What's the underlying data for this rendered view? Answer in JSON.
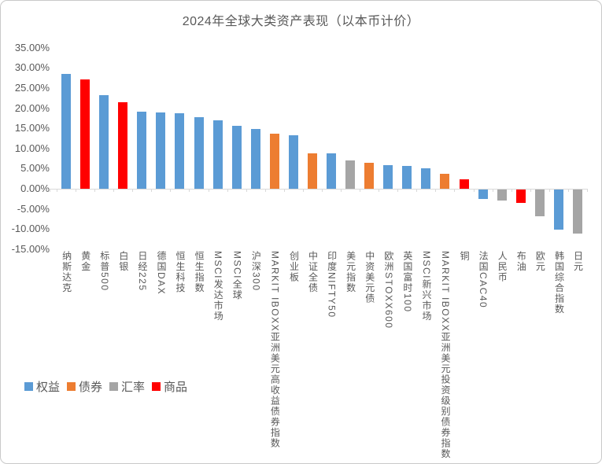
{
  "chart_data": {
    "type": "bar",
    "title": "2024年全球大类资产表现（以本币计价）",
    "unit": "%",
    "grid": false,
    "legend_position": "bottom-left",
    "y_axis": {
      "min": -15,
      "max": 35,
      "step": 5,
      "ticks": [
        {
          "value": 35,
          "label": "35.00%"
        },
        {
          "value": 30,
          "label": "30.00%"
        },
        {
          "value": 25,
          "label": "25.00%"
        },
        {
          "value": 20,
          "label": "20.00%"
        },
        {
          "value": 15,
          "label": "15.00%"
        },
        {
          "value": 10,
          "label": "10.00%"
        },
        {
          "value": 5,
          "label": "5.00%"
        },
        {
          "value": 0,
          "label": "0.00%"
        },
        {
          "value": -5,
          "label": "-5.00%"
        },
        {
          "value": -10,
          "label": "-10.00%"
        },
        {
          "value": -15,
          "label": "-15.00%"
        }
      ]
    },
    "legend": [
      {
        "label": "权益",
        "color": "#5B9BD5"
      },
      {
        "label": "债券",
        "color": "#ED7D31"
      },
      {
        "label": "汇率",
        "color": "#A5A5A5"
      },
      {
        "label": "商品",
        "color": "#FF0000"
      }
    ],
    "bars": [
      {
        "label": "纳斯达克",
        "value": 28.6,
        "group": "权益"
      },
      {
        "label": "黄金",
        "value": 27.2,
        "group": "商品"
      },
      {
        "label": "标普500",
        "value": 23.3,
        "group": "权益"
      },
      {
        "label": "白银",
        "value": 21.5,
        "group": "商品"
      },
      {
        "label": "日经225",
        "value": 19.2,
        "group": "权益"
      },
      {
        "label": "德国DAX",
        "value": 18.9,
        "group": "权益"
      },
      {
        "label": "恒生科技",
        "value": 18.7,
        "group": "权益"
      },
      {
        "label": "恒生指数",
        "value": 17.7,
        "group": "权益"
      },
      {
        "label": "MSCI发达市场",
        "value": 17.0,
        "group": "权益"
      },
      {
        "label": "MSCI全球",
        "value": 15.7,
        "group": "权益"
      },
      {
        "label": "沪深300",
        "value": 14.8,
        "group": "权益"
      },
      {
        "label": "MARKIT IBOXX亚洲美元高收益债券指数",
        "value": 13.6,
        "group": "债券"
      },
      {
        "label": "创业板",
        "value": 13.2,
        "group": "权益"
      },
      {
        "label": "中证全债",
        "value": 8.8,
        "group": "债券"
      },
      {
        "label": "印度NIFTY50",
        "value": 8.7,
        "group": "权益"
      },
      {
        "label": "美元指数",
        "value": 7.1,
        "group": "汇率"
      },
      {
        "label": "中资美元债",
        "value": 6.4,
        "group": "债券"
      },
      {
        "label": "欧洲STOXX600",
        "value": 5.9,
        "group": "权益"
      },
      {
        "label": "英国富时100",
        "value": 5.7,
        "group": "权益"
      },
      {
        "label": "MSCI新兴市场",
        "value": 5.1,
        "group": "权益"
      },
      {
        "label": "MARKIT IBOXX亚洲美元投资级别债券指数",
        "value": 3.7,
        "group": "债券"
      },
      {
        "label": "铜",
        "value": 2.3,
        "group": "商品"
      },
      {
        "label": "法国CAC40",
        "value": -2.4,
        "group": "权益"
      },
      {
        "label": "人民币",
        "value": -2.8,
        "group": "汇率"
      },
      {
        "label": "布油",
        "value": -3.3,
        "group": "商品"
      },
      {
        "label": "欧元",
        "value": -6.7,
        "group": "汇率"
      },
      {
        "label": "韩国综合指数",
        "value": -10.0,
        "group": "权益"
      },
      {
        "label": "日元",
        "value": -10.9,
        "group": "汇率"
      }
    ]
  },
  "colors": {
    "text": "#595959",
    "axis": "#D9D9D9",
    "background": "#FFFFFF",
    "border": "#C9C9C9"
  }
}
